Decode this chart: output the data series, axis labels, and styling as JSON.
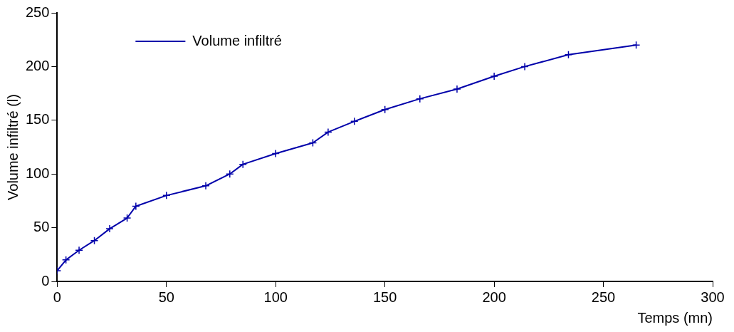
{
  "chart_data": {
    "type": "line",
    "xlabel": "Temps (mn)",
    "ylabel": "Volume infiltré (l)",
    "x": [
      0,
      4,
      10,
      17,
      24,
      32,
      36,
      50,
      68,
      79,
      85,
      100,
      117,
      124,
      136,
      150,
      166,
      183,
      200,
      214,
      234,
      265
    ],
    "series": [
      {
        "name": "Volume infiltré",
        "color": "#0000aa",
        "values": [
          10,
          20,
          29,
          38,
          49,
          59,
          70,
          80,
          89,
          100,
          109,
          119,
          129,
          139,
          149,
          160,
          170,
          179,
          191,
          200,
          211,
          220
        ]
      }
    ],
    "xlim": [
      0,
      300
    ],
    "xticks": [
      0,
      50,
      100,
      150,
      200,
      250,
      300
    ],
    "ylim": [
      0,
      250
    ],
    "yticks": [
      0,
      50,
      100,
      150,
      200,
      250
    ],
    "grid": false,
    "legend": "top left",
    "marker": "cross",
    "line_style": "solid"
  }
}
